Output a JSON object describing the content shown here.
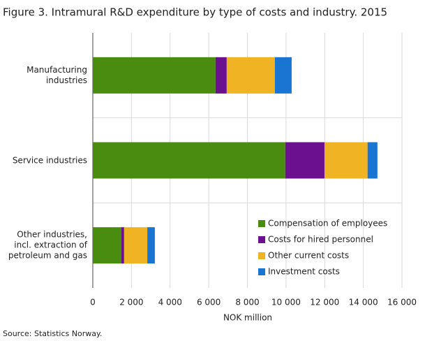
{
  "chart_data": {
    "type": "stacked-bar-horizontal",
    "title": "Figure 3. Intramural R&D expenditure by type of costs and industry. 2015",
    "xlabel": "NOK million",
    "source": "Source: Statistics Norway.",
    "categories": [
      "Manufacturing\nindustries",
      "Service industries",
      "Other industries,\nincl. extraction of\npetroleum and gas"
    ],
    "series": [
      {
        "name": "Compensation of employees",
        "color": "#4a8c0f",
        "values": [
          6350,
          9960,
          1480
        ]
      },
      {
        "name": "Costs for hired personnel",
        "color": "#6b118f",
        "values": [
          580,
          2030,
          140
        ]
      },
      {
        "name": "Other current costs",
        "color": "#f0b323",
        "values": [
          2490,
          2230,
          1200
        ]
      },
      {
        "name": "Investment costs",
        "color": "#1a75d2",
        "values": [
          870,
          510,
          390
        ]
      }
    ],
    "xlim": [
      0,
      16000
    ],
    "xticks": [
      0,
      {
        "value": 2000,
        "label": "2 000"
      },
      {
        "value": 4000,
        "label": "4 000"
      },
      {
        "value": 6000,
        "label": "6 000"
      },
      {
        "value": 8000,
        "label": "8 000"
      },
      {
        "value": 10000,
        "label": "10 000"
      },
      {
        "value": 12000,
        "label": "12 000"
      },
      {
        "value": 14000,
        "label": "14 000"
      },
      {
        "value": 16000,
        "label": "16 000"
      }
    ],
    "grid": true,
    "legend": "lower-right"
  }
}
